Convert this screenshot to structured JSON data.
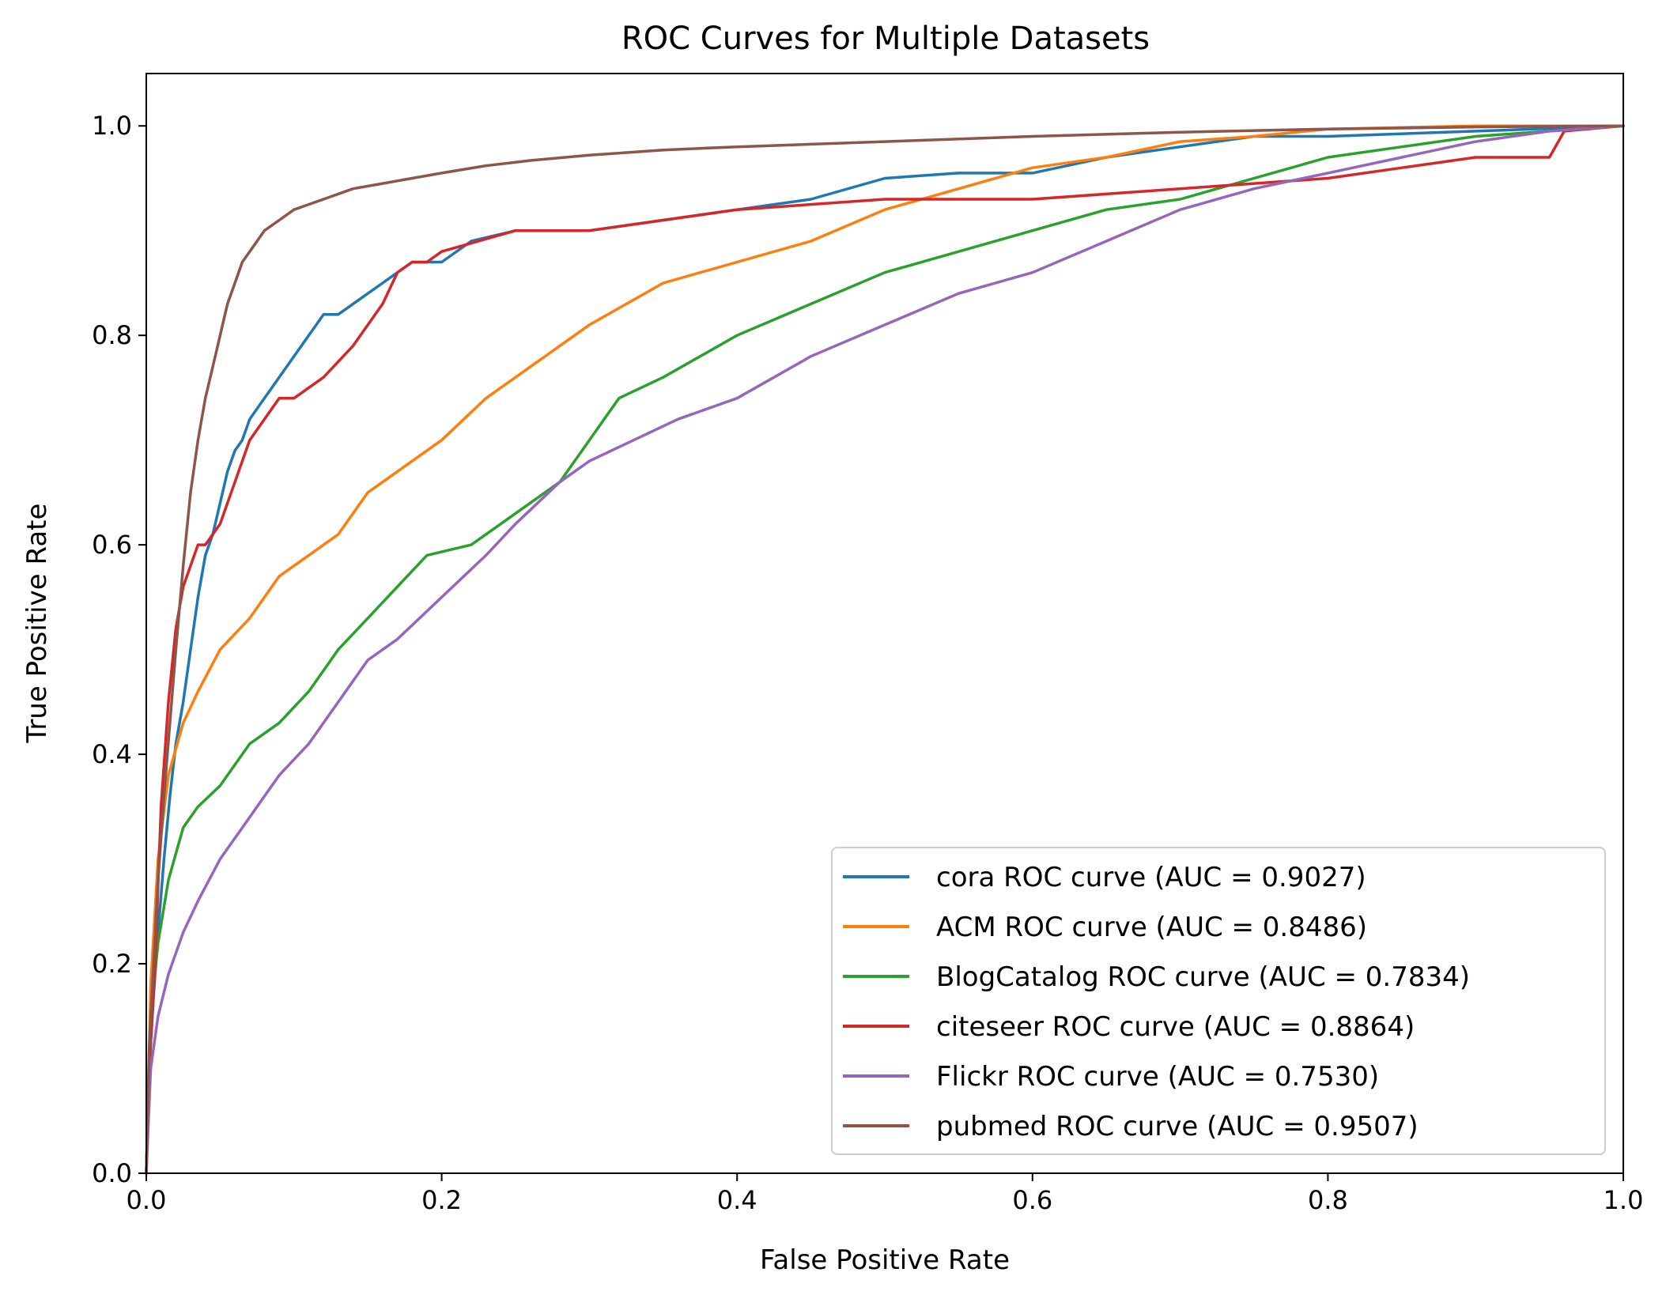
{
  "chart_data": {
    "type": "line",
    "title": "ROC Curves for Multiple Datasets",
    "xlabel": "False Positive Rate",
    "ylabel": "True Positive Rate",
    "xlim": [
      0.0,
      1.0
    ],
    "ylim": [
      0.0,
      1.05
    ],
    "x_ticks": [
      "0.0",
      "0.2",
      "0.4",
      "0.6",
      "0.8",
      "1.0"
    ],
    "y_ticks": [
      "0.0",
      "0.2",
      "0.4",
      "0.6",
      "0.8",
      "1.0"
    ],
    "grid": false,
    "legend_position": "lower-right",
    "series": [
      {
        "name": "cora ROC curve (AUC = 0.9027)",
        "color": "#1f77b4",
        "x": [
          0.0,
          0.002,
          0.005,
          0.008,
          0.012,
          0.016,
          0.02,
          0.025,
          0.03,
          0.035,
          0.04,
          0.045,
          0.05,
          0.055,
          0.06,
          0.065,
          0.07,
          0.08,
          0.09,
          0.1,
          0.11,
          0.12,
          0.13,
          0.14,
          0.15,
          0.16,
          0.17,
          0.18,
          0.2,
          0.22,
          0.25,
          0.3,
          0.35,
          0.4,
          0.45,
          0.5,
          0.55,
          0.6,
          0.65,
          0.7,
          0.75,
          0.8,
          0.9,
          1.0
        ],
        "y": [
          0.0,
          0.1,
          0.17,
          0.23,
          0.3,
          0.36,
          0.41,
          0.45,
          0.5,
          0.55,
          0.59,
          0.61,
          0.64,
          0.67,
          0.69,
          0.7,
          0.72,
          0.74,
          0.76,
          0.78,
          0.8,
          0.82,
          0.82,
          0.83,
          0.84,
          0.85,
          0.86,
          0.87,
          0.87,
          0.89,
          0.9,
          0.9,
          0.91,
          0.92,
          0.93,
          0.95,
          0.955,
          0.955,
          0.97,
          0.98,
          0.99,
          0.99,
          0.995,
          1.0
        ]
      },
      {
        "name": "ACM ROC curve (AUC = 0.8486)",
        "color": "#ff7f0e",
        "x": [
          0.0,
          0.003,
          0.008,
          0.015,
          0.025,
          0.035,
          0.05,
          0.07,
          0.09,
          0.11,
          0.13,
          0.15,
          0.17,
          0.2,
          0.23,
          0.26,
          0.3,
          0.35,
          0.4,
          0.45,
          0.5,
          0.55,
          0.6,
          0.65,
          0.7,
          0.75,
          0.8,
          0.9,
          1.0
        ],
        "y": [
          0.0,
          0.18,
          0.3,
          0.38,
          0.43,
          0.46,
          0.5,
          0.53,
          0.57,
          0.59,
          0.61,
          0.65,
          0.67,
          0.7,
          0.74,
          0.77,
          0.81,
          0.85,
          0.87,
          0.89,
          0.92,
          0.94,
          0.96,
          0.97,
          0.985,
          0.99,
          0.997,
          1.0,
          1.0
        ]
      },
      {
        "name": "BlogCatalog ROC curve (AUC = 0.7834)",
        "color": "#2ca02c",
        "x": [
          0.0,
          0.003,
          0.008,
          0.015,
          0.025,
          0.035,
          0.05,
          0.06,
          0.07,
          0.09,
          0.11,
          0.13,
          0.15,
          0.17,
          0.19,
          0.22,
          0.25,
          0.28,
          0.3,
          0.32,
          0.35,
          0.4,
          0.45,
          0.5,
          0.55,
          0.6,
          0.65,
          0.7,
          0.75,
          0.8,
          0.85,
          0.9,
          1.0
        ],
        "y": [
          0.0,
          0.15,
          0.22,
          0.28,
          0.33,
          0.35,
          0.37,
          0.39,
          0.41,
          0.43,
          0.46,
          0.5,
          0.53,
          0.56,
          0.59,
          0.6,
          0.63,
          0.66,
          0.7,
          0.74,
          0.76,
          0.8,
          0.83,
          0.86,
          0.88,
          0.9,
          0.92,
          0.93,
          0.95,
          0.97,
          0.98,
          0.99,
          1.0
        ]
      },
      {
        "name": "citeseer ROC curve (AUC = 0.8864)",
        "color": "#d62728",
        "x": [
          0.0,
          0.002,
          0.006,
          0.01,
          0.015,
          0.02,
          0.025,
          0.03,
          0.035,
          0.04,
          0.05,
          0.06,
          0.07,
          0.08,
          0.09,
          0.1,
          0.12,
          0.14,
          0.16,
          0.17,
          0.18,
          0.19,
          0.2,
          0.25,
          0.3,
          0.4,
          0.5,
          0.6,
          0.7,
          0.75,
          0.8,
          0.85,
          0.9,
          0.95,
          0.96,
          1.0
        ],
        "y": [
          0.0,
          0.1,
          0.2,
          0.35,
          0.45,
          0.52,
          0.56,
          0.58,
          0.6,
          0.6,
          0.62,
          0.66,
          0.7,
          0.72,
          0.74,
          0.74,
          0.76,
          0.79,
          0.83,
          0.86,
          0.87,
          0.87,
          0.88,
          0.9,
          0.9,
          0.92,
          0.93,
          0.93,
          0.94,
          0.945,
          0.95,
          0.96,
          0.97,
          0.97,
          0.995,
          1.0
        ]
      },
      {
        "name": "Flickr ROC curve (AUC = 0.7530)",
        "color": "#9467bd",
        "x": [
          0.0,
          0.003,
          0.008,
          0.015,
          0.025,
          0.035,
          0.05,
          0.07,
          0.09,
          0.11,
          0.13,
          0.15,
          0.17,
          0.2,
          0.23,
          0.25,
          0.28,
          0.3,
          0.33,
          0.36,
          0.4,
          0.45,
          0.5,
          0.55,
          0.6,
          0.65,
          0.7,
          0.75,
          0.8,
          0.85,
          0.9,
          0.95,
          1.0
        ],
        "y": [
          0.0,
          0.1,
          0.15,
          0.19,
          0.23,
          0.26,
          0.3,
          0.34,
          0.38,
          0.41,
          0.45,
          0.49,
          0.51,
          0.55,
          0.59,
          0.62,
          0.66,
          0.68,
          0.7,
          0.72,
          0.74,
          0.78,
          0.81,
          0.84,
          0.86,
          0.89,
          0.92,
          0.94,
          0.955,
          0.97,
          0.985,
          0.995,
          1.0
        ]
      },
      {
        "name": "pubmed ROC curve (AUC = 0.9507)",
        "color": "#8c564b",
        "x": [
          0.0,
          0.002,
          0.005,
          0.008,
          0.012,
          0.016,
          0.02,
          0.025,
          0.03,
          0.035,
          0.04,
          0.045,
          0.05,
          0.055,
          0.06,
          0.065,
          0.07,
          0.08,
          0.09,
          0.1,
          0.12,
          0.14,
          0.16,
          0.18,
          0.2,
          0.23,
          0.26,
          0.3,
          0.35,
          0.4,
          0.5,
          0.6,
          0.7,
          0.8,
          0.9,
          1.0
        ],
        "y": [
          0.0,
          0.12,
          0.2,
          0.28,
          0.36,
          0.43,
          0.5,
          0.58,
          0.65,
          0.7,
          0.74,
          0.77,
          0.8,
          0.83,
          0.85,
          0.87,
          0.88,
          0.9,
          0.91,
          0.92,
          0.93,
          0.94,
          0.945,
          0.95,
          0.955,
          0.962,
          0.967,
          0.972,
          0.977,
          0.98,
          0.985,
          0.99,
          0.994,
          0.997,
          0.999,
          1.0
        ]
      }
    ]
  }
}
